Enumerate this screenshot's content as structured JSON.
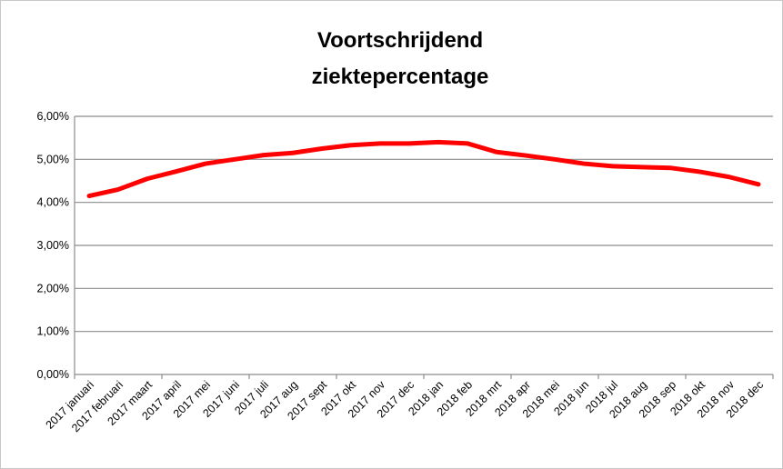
{
  "chart_data": {
    "type": "line",
    "title": [
      "Voortschrijdend",
      "ziektepercentage"
    ],
    "categories": [
      "2017 januari",
      "2017 februari",
      "2017 maart",
      "2017 april",
      "2017 mei",
      "2017 juni",
      "2017 juli",
      "2017 aug",
      "2017 sept",
      "2017 okt",
      "2017 nov",
      "2017 dec",
      "2018 jan",
      "2018 feb",
      "2018 mrt",
      "2018 apr",
      "2018 mei",
      "2018 jun",
      "2018 jul",
      "2018 aug",
      "2018 sep",
      "2018 okt",
      "2018 nov",
      "2018 dec"
    ],
    "series": [
      {
        "color": "#ff0000",
        "values": [
          4.15,
          4.3,
          4.55,
          4.72,
          4.9,
          5.0,
          5.1,
          5.15,
          5.25,
          5.33,
          5.37,
          5.37,
          5.4,
          5.37,
          5.17,
          5.09,
          5.0,
          4.9,
          4.84,
          4.82,
          4.8,
          4.71,
          4.59,
          4.42
        ]
      }
    ],
    "ylim": [
      0,
      6
    ],
    "yticks": [
      {
        "value": 0,
        "label": "0,00%"
      },
      {
        "value": 1,
        "label": "1,00%"
      },
      {
        "value": 2,
        "label": "2,00%"
      },
      {
        "value": 3,
        "label": "3,00%"
      },
      {
        "value": 4,
        "label": "4,00%"
      },
      {
        "value": 5,
        "label": "5,00%"
      },
      {
        "value": 6,
        "label": "6,00%"
      }
    ],
    "grid": true
  }
}
